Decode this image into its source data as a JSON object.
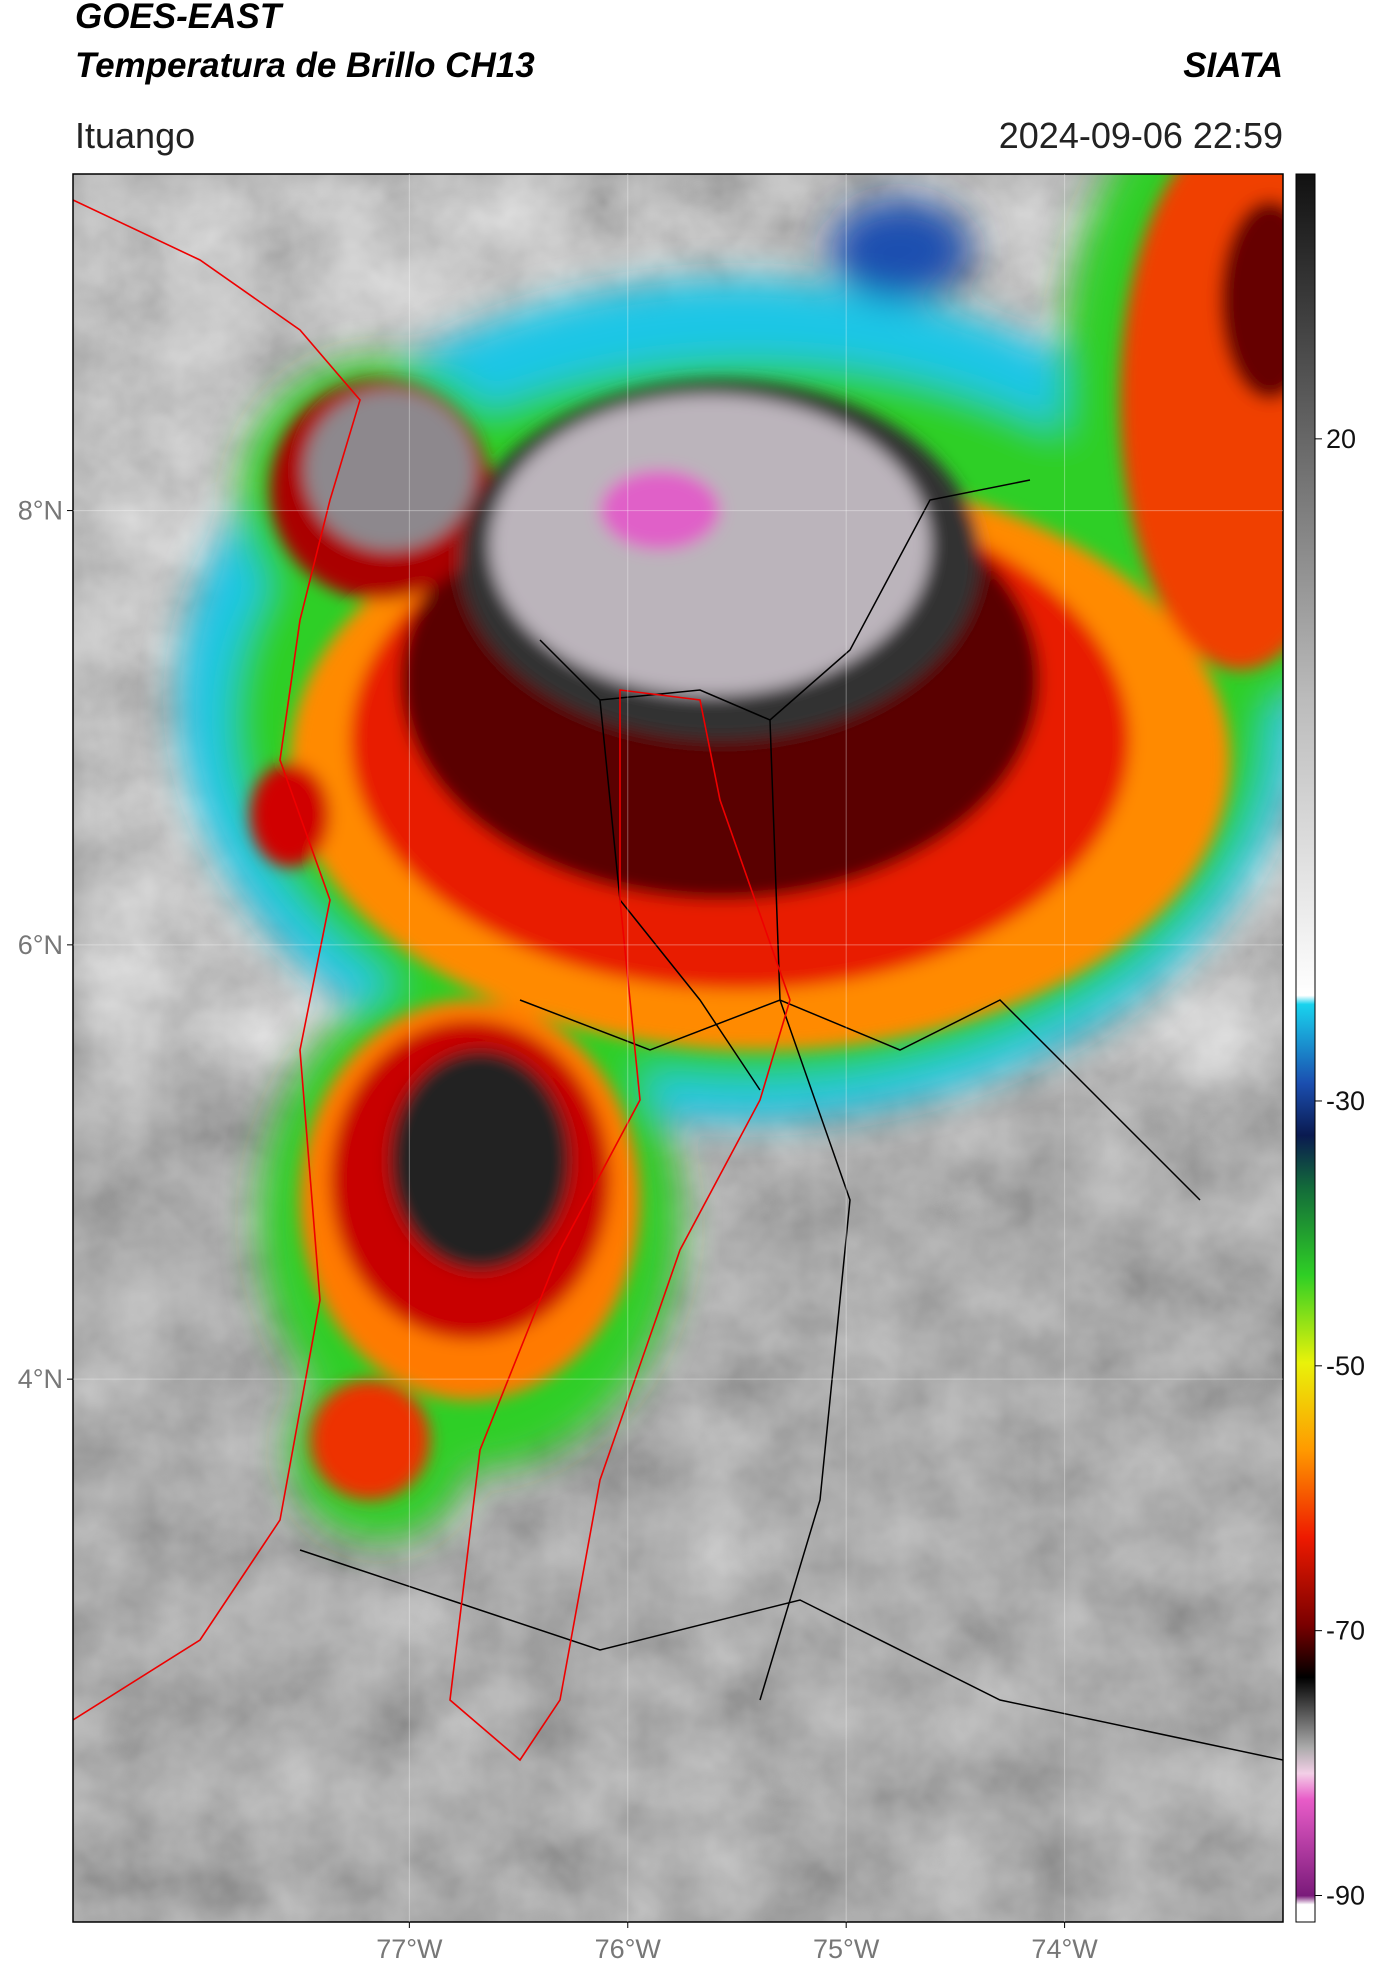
{
  "header": {
    "title": "GOES-EAST",
    "subtitle": "Temperatura de Brillo CH13",
    "brand": "SIATA",
    "location": "Ituango",
    "datetime": "2024-09-06 22:59"
  },
  "map": {
    "xlim": [
      -78.54,
      -73.0
    ],
    "ylim": [
      1.5,
      9.55
    ],
    "xticks": [
      {
        "value": -77,
        "label": "77°W"
      },
      {
        "value": -76,
        "label": "76°W"
      },
      {
        "value": -75,
        "label": "75°W"
      },
      {
        "value": -74,
        "label": "74°W"
      }
    ],
    "yticks": [
      {
        "value": 8,
        "label": "8°N"
      },
      {
        "value": 6,
        "label": "6°N"
      },
      {
        "value": 4,
        "label": "4°N"
      }
    ],
    "grid": true
  },
  "colorbar": {
    "clim": [
      -92,
      40
    ],
    "ticks": [
      20,
      -30,
      -50,
      -70,
      -90
    ]
  }
}
